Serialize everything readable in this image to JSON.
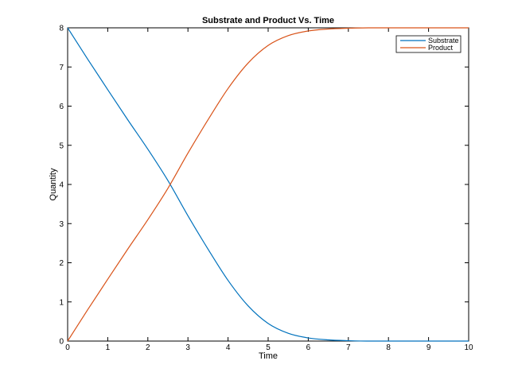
{
  "chart_data": {
    "type": "line",
    "title": "Substrate and Product Vs. Time",
    "xlabel": "Time",
    "ylabel": "Quantity",
    "xlim": [
      0,
      10
    ],
    "ylim": [
      0,
      8
    ],
    "xticks": [
      0,
      1,
      2,
      3,
      4,
      5,
      6,
      7,
      8,
      9,
      10
    ],
    "yticks": [
      0,
      1,
      2,
      3,
      4,
      5,
      6,
      7,
      8
    ],
    "grid": false,
    "legend_position": "top-right",
    "x": [
      0,
      0.5,
      1,
      1.5,
      2,
      2.5,
      3,
      3.5,
      4,
      4.5,
      5,
      5.5,
      6,
      6.5,
      7,
      7.5,
      8,
      8.5,
      9,
      9.5,
      10
    ],
    "series": [
      {
        "name": "Substrate",
        "color": "#0072BD",
        "values": [
          8,
          7.2,
          6.42,
          5.65,
          4.9,
          4.1,
          3.2,
          2.35,
          1.55,
          0.9,
          0.45,
          0.2,
          0.08,
          0.03,
          0.01,
          0,
          0,
          0,
          0,
          0,
          0
        ]
      },
      {
        "name": "Product",
        "color": "#D95319",
        "values": [
          0,
          0.8,
          1.58,
          2.35,
          3.1,
          3.9,
          4.8,
          5.65,
          6.45,
          7.1,
          7.55,
          7.8,
          7.92,
          7.97,
          7.99,
          8,
          8,
          8,
          8,
          8,
          8
        ]
      }
    ]
  }
}
